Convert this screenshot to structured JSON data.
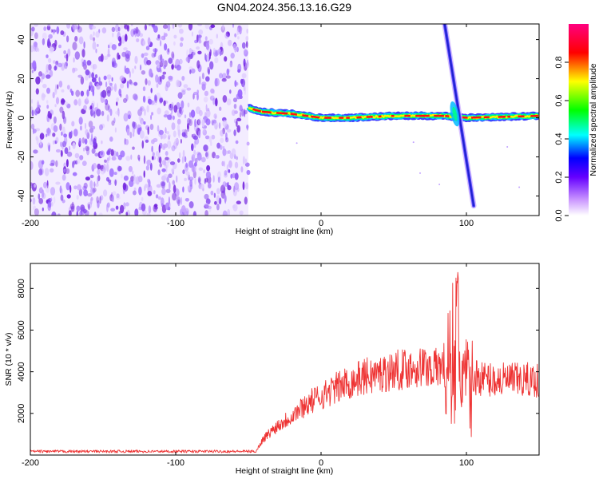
{
  "figure_title": "GN04.2024.356.13.16.G29",
  "chart_data": [
    {
      "type": "heatmap",
      "title": "GN04.2024.356.13.16.G29",
      "xlabel": "Height of straight line (km)",
      "ylabel": "Frequency (Hz)",
      "xlim": [
        -200,
        150
      ],
      "ylim": [
        -50,
        48
      ],
      "xticks": [
        "-200",
        "-100",
        "0",
        "100"
      ],
      "xtick_values": [
        -200,
        -100,
        0,
        100
      ],
      "yticks": [
        "-40",
        "-20",
        "0",
        "20",
        "40"
      ],
      "ytick_values": [
        -40,
        -20,
        0,
        20,
        40
      ],
      "colorbar": {
        "label": "Normalized spectral amplitude",
        "range": [
          0.0,
          1.0
        ],
        "ticks": [
          "0.0",
          "0.2",
          "0.4",
          "0.6",
          "0.8"
        ],
        "tick_values": [
          0.0,
          0.2,
          0.4,
          0.6,
          0.8
        ],
        "colors": [
          "#ffffff",
          "#9933ff",
          "#0000ff",
          "#00ffff",
          "#00ff00",
          "#ffff00",
          "#ff0000",
          "#ff0080"
        ]
      },
      "features": {
        "noise_region_km": [
          -200,
          -50
        ],
        "noise_level": 0.25,
        "signal_line_km": [
          -50,
          150
        ],
        "signal_frequency_hz": [
          [
            -50,
            5
          ],
          [
            -40,
            3
          ],
          [
            -20,
            2
          ],
          [
            0,
            0
          ],
          [
            20,
            0
          ],
          [
            50,
            1
          ],
          [
            85,
            1
          ],
          [
            100,
            0
          ],
          [
            150,
            1
          ]
        ],
        "diagonal_streak": {
          "from": [
            85,
            48
          ],
          "to": [
            105,
            -45
          ]
        }
      },
      "grid": false
    },
    {
      "type": "line",
      "xlabel": "Height of straight line (km)",
      "ylabel": "SNR (10 * v/v)",
      "xlim": [
        -200,
        150
      ],
      "ylim": [
        0,
        9200
      ],
      "xticks": [
        "-200",
        "-100",
        "0",
        "100"
      ],
      "xtick_values": [
        -200,
        -100,
        0,
        100
      ],
      "yticks": [
        "2000",
        "4000",
        "6000",
        "8000"
      ],
      "ytick_values": [
        2000,
        4000,
        6000,
        8000
      ],
      "color": "#ee3333",
      "envelope": {
        "x": [
          -200,
          -45,
          -40,
          -30,
          -20,
          -10,
          0,
          10,
          20,
          30,
          40,
          50,
          60,
          70,
          80,
          85,
          90,
          93,
          95,
          97,
          100,
          110,
          120,
          130,
          140,
          150
        ],
        "y": [
          150,
          150,
          800,
          1500,
          2000,
          2600,
          3000,
          3400,
          3700,
          4000,
          4100,
          4300,
          4400,
          4500,
          4400,
          4700,
          6000,
          7000,
          4000,
          5500,
          4200,
          3900,
          3800,
          3800,
          3800,
          3800
        ]
      },
      "grid": false
    }
  ]
}
